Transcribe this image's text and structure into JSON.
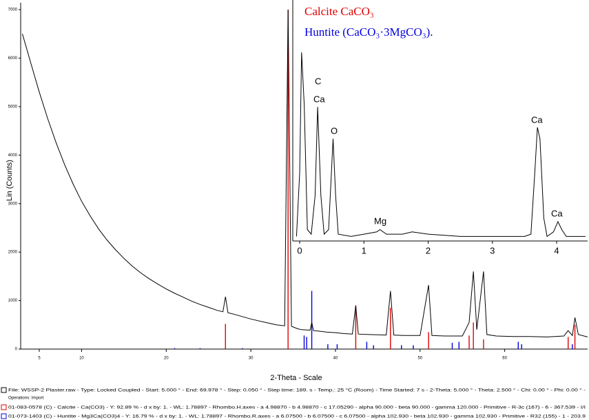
{
  "chart_data": [
    {
      "type": "line",
      "x_label": "2-Theta - Scale",
      "y_label": "Lin (Counts)",
      "xlim": [
        2.8,
        69.8
      ],
      "ylim": [
        0,
        7000
      ],
      "xticks": [
        5,
        10,
        20,
        30,
        40,
        50,
        60
      ],
      "yticks": [
        0,
        1000,
        2000,
        3000,
        4000,
        5000,
        6000,
        7000
      ],
      "color": "#000000",
      "x": [
        3,
        4,
        5,
        6,
        7,
        8,
        9,
        10,
        11,
        12,
        13,
        14,
        15,
        16,
        17,
        18,
        19,
        20,
        21,
        22,
        23,
        24,
        25,
        26,
        26.7,
        27,
        27.3,
        28,
        29,
        30,
        31,
        32,
        33,
        34,
        34.4,
        34.8,
        35.5,
        36,
        37,
        37.2,
        37.4,
        38,
        39,
        40,
        41,
        42,
        42.4,
        42.7,
        44,
        46,
        46.5,
        46.9,
        48,
        50,
        51,
        51.4,
        53,
        55,
        55.8,
        56.3,
        56.7,
        57.5,
        57.9,
        59,
        61,
        63,
        65,
        67,
        67.5,
        68,
        68.3,
        68.7,
        69.8
      ],
      "values": [
        6500,
        5900,
        5300,
        4750,
        4250,
        3800,
        3400,
        3050,
        2750,
        2480,
        2250,
        2050,
        1870,
        1710,
        1570,
        1450,
        1340,
        1240,
        1150,
        1070,
        990,
        920,
        860,
        800,
        770,
        1080,
        750,
        720,
        670,
        620,
        580,
        540,
        500,
        480,
        7000,
        470,
        420,
        400,
        390,
        550,
        380,
        370,
        350,
        340,
        320,
        310,
        900,
        310,
        300,
        290,
        1200,
        290,
        280,
        280,
        1320,
        280,
        270,
        270,
        550,
        1600,
        400,
        1600,
        300,
        270,
        260,
        260,
        250,
        270,
        380,
        280,
        650,
        300,
        250
      ],
      "sticks": [
        {
          "name": "Calcite CaCO₃",
          "color": "#e00000",
          "x": [
            27.0,
            34.4,
            42.4,
            46.5,
            51.0,
            55.8,
            56.3,
            57.5,
            67.5,
            68.3
          ],
          "values": [
            520,
            7000,
            900,
            850,
            350,
            280,
            550,
            200,
            250,
            500
          ]
        },
        {
          "name": "Huntite (CaCO₃·3MgCO₃).",
          "color": "#0000e0",
          "x": [
            21.0,
            24.0,
            29.0,
            36.3,
            36.6,
            37.2,
            39.1,
            40.2,
            43.7,
            44.5,
            47.8,
            49.2,
            53.8,
            54.6,
            61.6,
            62.0,
            68.0
          ],
          "values": [
            20,
            20,
            20,
            280,
            250,
            1200,
            100,
            100,
            150,
            80,
            80,
            80,
            130,
            150,
            150,
            100,
            100
          ]
        }
      ]
    },
    {
      "type": "line",
      "xlim": [
        -0.1,
        4.48
      ],
      "ylim": [
        0,
        100
      ],
      "xticks": [
        0,
        1,
        2,
        3,
        4
      ],
      "color": "#000000",
      "x": [
        -0.05,
        0.0,
        0.03,
        0.07,
        0.12,
        0.18,
        0.24,
        0.28,
        0.33,
        0.38,
        0.45,
        0.52,
        0.56,
        0.6,
        0.8,
        1.0,
        1.2,
        1.25,
        1.35,
        1.6,
        1.75,
        2.0,
        2.5,
        3.0,
        3.5,
        3.6,
        3.66,
        3.7,
        3.74,
        3.8,
        3.85,
        3.95,
        4.02,
        4.08,
        4.15,
        4.45
      ],
      "values": [
        2,
        30,
        83,
        60,
        5,
        3,
        20,
        59,
        20,
        3,
        5,
        45,
        20,
        3,
        2,
        3,
        4,
        5,
        3,
        3,
        4,
        3,
        2,
        2,
        2,
        3,
        30,
        50,
        45,
        10,
        2,
        4,
        8.5,
        5,
        2,
        2
      ],
      "peak_labels": [
        "C",
        "Ca",
        "O",
        "Mg",
        "Ca",
        "Ca"
      ]
    }
  ],
  "footer": {
    "lines": [
      "File: WSSP-2 Plaster.raw - Type: Locked Coupled - Start: 5.000 ° - End: 69.978 ° - Step: 0.050 ° - Step time: 189. s - Temp.: 25 °C (Room) - Time Started: 7 s - 2-Theta: 5.000 ° - Theta: 2.500 ° - Chi: 0.00 ° - Phi: 0.00 ° -",
      "Operations: Import",
      "01-083-0578 (C) - Calcite - Ca(CO3) - Y: 92.89 % - d x by: 1. - WL: 1.78897 - Rhombo.H.axes - a 4.98870 - b 4.98870 - c 17.05290 - alpha 90.000 - beta 90.000 - gamma 120.000 - Primitive - R-3c (167) - 6 - 367.539 - I/I",
      "01-073-1403 (C) - Huntite - Mg3Ca(CO3)4 - Y: 16.79 % - d x by: 1. - WL: 1.78897 - Rhombo.R.axes - a 6.07500 - b 6.07500 - c 6.07500 - alpha 102.930 - beta 102.930 - gamma 102.930 - Primitive - R32 (155) - 1 - 203.9"
    ]
  }
}
